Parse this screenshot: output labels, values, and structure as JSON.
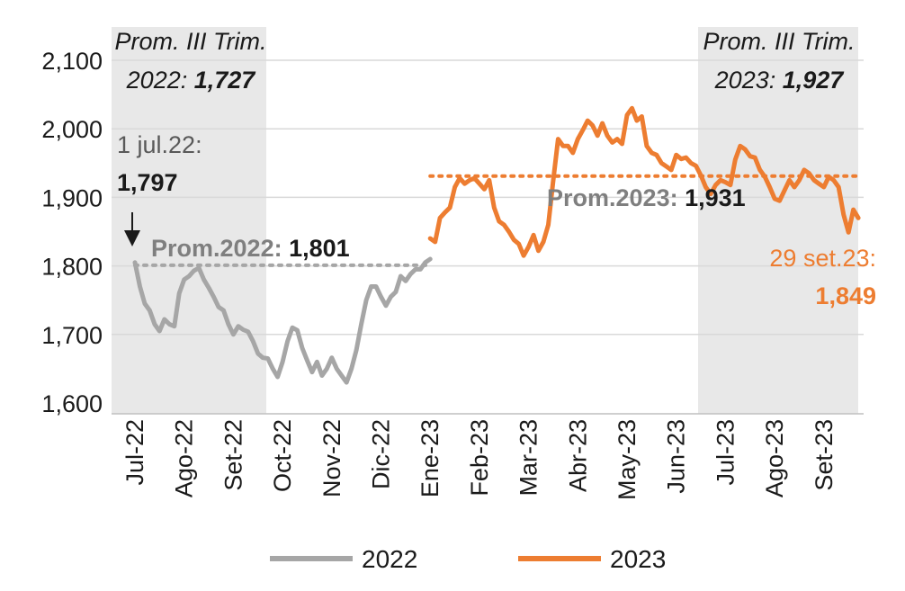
{
  "chart_data": {
    "type": "line",
    "title": "",
    "xlabel": "",
    "ylabel": "",
    "ylim": [
      1600,
      2100
    ],
    "y_ticks": [
      "1,600",
      "1,700",
      "1,800",
      "1,900",
      "2,000",
      "2,100"
    ],
    "x_ticks": [
      "Jul-22",
      "Ago-22",
      "Set-22",
      "Oct-22",
      "Nov-22",
      "Dic-22",
      "Ene-23",
      "Feb-23",
      "Mar-23",
      "Abr-23",
      "May-23",
      "Jun-23",
      "Jul-23",
      "Ago-23",
      "Set-23"
    ],
    "shaded_periods": [
      "Jul-22 to Set-22",
      "Jul-23 to Set-23"
    ],
    "series": [
      {
        "name": "2022",
        "color": "#a6a6a6",
        "points": [
          [
            0.0,
            1805
          ],
          [
            0.1,
            1770
          ],
          [
            0.2,
            1745
          ],
          [
            0.3,
            1735
          ],
          [
            0.4,
            1715
          ],
          [
            0.5,
            1705
          ],
          [
            0.6,
            1722
          ],
          [
            0.7,
            1715
          ],
          [
            0.8,
            1712
          ],
          [
            0.9,
            1760
          ],
          [
            1.0,
            1780
          ],
          [
            1.1,
            1785
          ],
          [
            1.2,
            1793
          ],
          [
            1.3,
            1797
          ],
          [
            1.4,
            1780
          ],
          [
            1.5,
            1768
          ],
          [
            1.6,
            1755
          ],
          [
            1.7,
            1740
          ],
          [
            1.8,
            1735
          ],
          [
            1.9,
            1715
          ],
          [
            2.0,
            1700
          ],
          [
            2.1,
            1712
          ],
          [
            2.2,
            1707
          ],
          [
            2.3,
            1704
          ],
          [
            2.4,
            1690
          ],
          [
            2.5,
            1672
          ],
          [
            2.6,
            1666
          ],
          [
            2.7,
            1665
          ],
          [
            2.8,
            1650
          ],
          [
            2.9,
            1638
          ],
          [
            3.0,
            1660
          ],
          [
            3.1,
            1690
          ],
          [
            3.2,
            1710
          ],
          [
            3.3,
            1706
          ],
          [
            3.4,
            1680
          ],
          [
            3.5,
            1662
          ],
          [
            3.6,
            1645
          ],
          [
            3.7,
            1660
          ],
          [
            3.8,
            1640
          ],
          [
            3.9,
            1650
          ],
          [
            4.0,
            1666
          ],
          [
            4.1,
            1650
          ],
          [
            4.2,
            1640
          ],
          [
            4.3,
            1630
          ],
          [
            4.4,
            1650
          ],
          [
            4.5,
            1677
          ],
          [
            4.6,
            1715
          ],
          [
            4.7,
            1750
          ],
          [
            4.8,
            1770
          ],
          [
            4.9,
            1770
          ],
          [
            5.0,
            1755
          ],
          [
            5.1,
            1742
          ],
          [
            5.2,
            1755
          ],
          [
            5.3,
            1762
          ],
          [
            5.4,
            1785
          ],
          [
            5.5,
            1778
          ],
          [
            5.6,
            1788
          ],
          [
            5.7,
            1795
          ],
          [
            5.8,
            1795
          ],
          [
            5.9,
            1805
          ],
          [
            6.0,
            1810
          ]
        ]
      },
      {
        "name": "2023",
        "color": "#ed7d31",
        "points": [
          [
            6.0,
            1840
          ],
          [
            6.1,
            1835
          ],
          [
            6.2,
            1870
          ],
          [
            6.3,
            1878
          ],
          [
            6.4,
            1885
          ],
          [
            6.5,
            1915
          ],
          [
            6.6,
            1928
          ],
          [
            6.7,
            1920
          ],
          [
            6.8,
            1925
          ],
          [
            6.9,
            1928
          ],
          [
            7.0,
            1920
          ],
          [
            7.1,
            1912
          ],
          [
            7.2,
            1925
          ],
          [
            7.3,
            1885
          ],
          [
            7.4,
            1865
          ],
          [
            7.5,
            1860
          ],
          [
            7.6,
            1850
          ],
          [
            7.7,
            1838
          ],
          [
            7.8,
            1832
          ],
          [
            7.9,
            1815
          ],
          [
            8.0,
            1828
          ],
          [
            8.1,
            1845
          ],
          [
            8.2,
            1822
          ],
          [
            8.3,
            1835
          ],
          [
            8.4,
            1860
          ],
          [
            8.5,
            1925
          ],
          [
            8.6,
            1985
          ],
          [
            8.7,
            1975
          ],
          [
            8.8,
            1975
          ],
          [
            8.9,
            1965
          ],
          [
            9.0,
            1985
          ],
          [
            9.1,
            1998
          ],
          [
            9.2,
            2012
          ],
          [
            9.3,
            2005
          ],
          [
            9.4,
            1990
          ],
          [
            9.5,
            2008
          ],
          [
            9.6,
            1990
          ],
          [
            9.7,
            1980
          ],
          [
            9.8,
            1985
          ],
          [
            9.9,
            1978
          ],
          [
            10.0,
            2020
          ],
          [
            10.1,
            2030
          ],
          [
            10.2,
            2012
          ],
          [
            10.3,
            2018
          ],
          [
            10.4,
            1975
          ],
          [
            10.5,
            1965
          ],
          [
            10.6,
            1962
          ],
          [
            10.7,
            1950
          ],
          [
            10.8,
            1945
          ],
          [
            10.9,
            1940
          ],
          [
            11.0,
            1962
          ],
          [
            11.1,
            1956
          ],
          [
            11.2,
            1958
          ],
          [
            11.3,
            1950
          ],
          [
            11.4,
            1946
          ],
          [
            11.5,
            1932
          ],
          [
            11.6,
            1915
          ],
          [
            11.7,
            1905
          ],
          [
            11.8,
            1918
          ],
          [
            11.9,
            1925
          ],
          [
            12.0,
            1922
          ],
          [
            12.1,
            1918
          ],
          [
            12.2,
            1955
          ],
          [
            12.3,
            1975
          ],
          [
            12.4,
            1970
          ],
          [
            12.5,
            1960
          ],
          [
            12.6,
            1958
          ],
          [
            12.7,
            1940
          ],
          [
            12.8,
            1930
          ],
          [
            12.9,
            1915
          ],
          [
            13.0,
            1898
          ],
          [
            13.1,
            1895
          ],
          [
            13.2,
            1910
          ],
          [
            13.3,
            1925
          ],
          [
            13.4,
            1915
          ],
          [
            13.5,
            1925
          ],
          [
            13.6,
            1940
          ],
          [
            13.7,
            1935
          ],
          [
            13.8,
            1925
          ],
          [
            13.9,
            1920
          ],
          [
            14.0,
            1915
          ],
          [
            14.1,
            1930
          ],
          [
            14.2,
            1925
          ],
          [
            14.3,
            1915
          ],
          [
            14.4,
            1875
          ],
          [
            14.5,
            1849
          ],
          [
            14.6,
            1882
          ],
          [
            14.7,
            1870
          ]
        ]
      }
    ],
    "reference_lines": [
      {
        "series": "2022",
        "label": "Prom.2022:",
        "value_label": "1,801",
        "value": 1801
      },
      {
        "series": "2023",
        "label": "Prom.2023:",
        "value_label": "1,931",
        "value": 1931
      }
    ],
    "annotations": {
      "q3_2022": {
        "line1": "Prom. III Trim.",
        "line2_prefix": "2022:",
        "line2_value": "1,727"
      },
      "q3_2023": {
        "line1": "Prom. III Trim.",
        "line2_prefix": "2023:",
        "line2_value": "1,927"
      },
      "start": {
        "date": "1 jul.22:",
        "value": "1,797"
      },
      "end": {
        "date": "29 set.23:",
        "value": "1,849"
      }
    },
    "legend": {
      "position": "bottom",
      "items": [
        "2022",
        "2023"
      ]
    }
  },
  "colors": {
    "gray": "#a6a6a6",
    "orange": "#ed7d31",
    "shade": "#e8e8e8",
    "grid": "#d9d9d9",
    "text": "#1a1a1a"
  }
}
